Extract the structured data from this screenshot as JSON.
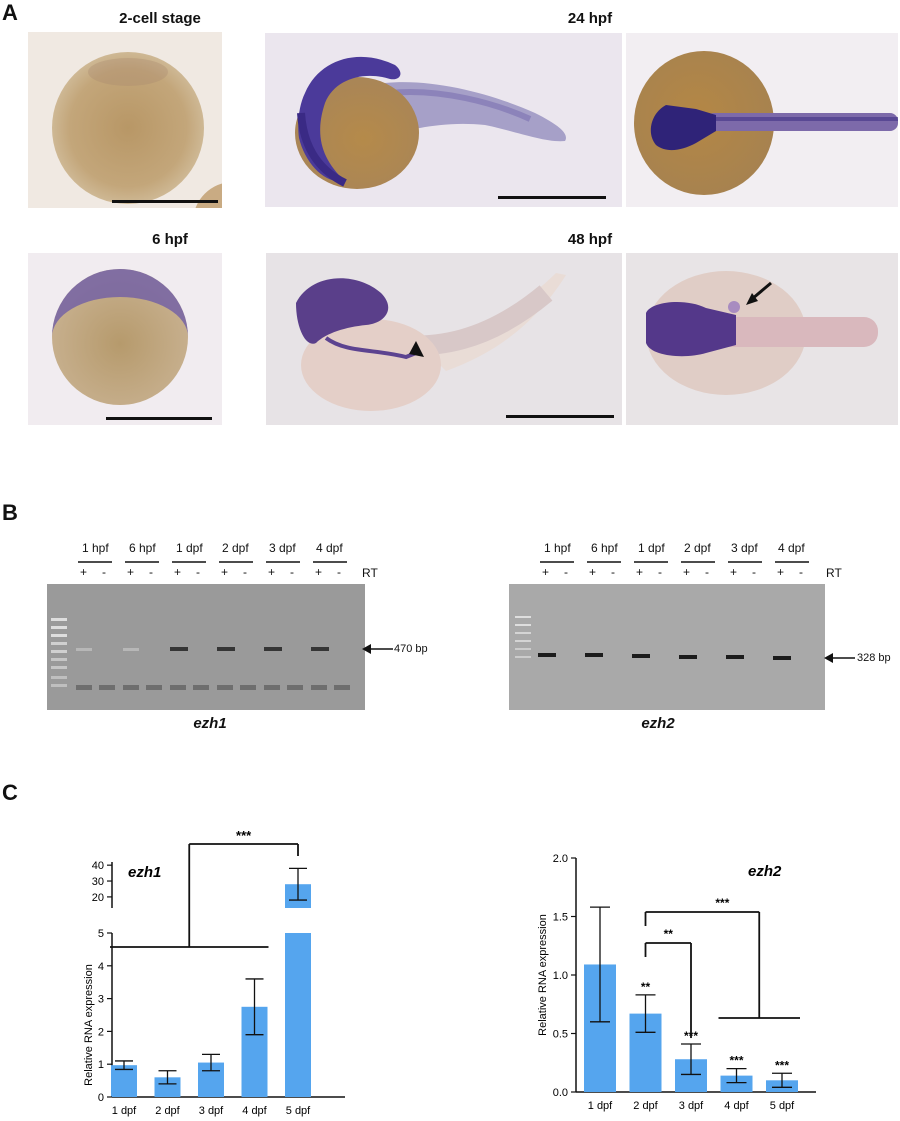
{
  "panelA": {
    "letter": "A",
    "titles": {
      "two_cell": "2-cell stage",
      "h24": "24 hpf",
      "h6": "6 hpf",
      "h48": "48 hpf"
    }
  },
  "panelB": {
    "letter": "B",
    "lanes": [
      "1 hpf",
      "6 hpf",
      "1 dpf",
      "2 dpf",
      "3 dpf",
      "4 dpf"
    ],
    "plus": "+",
    "minus": "-",
    "rt_label": "RT",
    "gel1": {
      "gene": "ezh1",
      "band": "470 bp"
    },
    "gel2": {
      "gene": "ezh2",
      "band": "328 bp"
    }
  },
  "panelC": {
    "letter": "C"
  },
  "chart_data": [
    {
      "type": "bar",
      "title": "ezh1",
      "xlabel": "",
      "ylabel": "Relative RNA expression",
      "categories": [
        "1 dpf",
        "2 dpf",
        "3 dpf",
        "4 dpf",
        "5 dpf"
      ],
      "values": [
        0.97,
        0.6,
        1.05,
        2.75,
        28
      ],
      "errors": [
        0.13,
        0.2,
        0.25,
        0.85,
        10
      ],
      "y_axis": "broken",
      "ylim_lower": [
        0,
        5
      ],
      "yticks_lower": [
        "0",
        "1",
        "2",
        "3",
        "4",
        "5"
      ],
      "ylim_upper": [
        13,
        42
      ],
      "yticks_upper": [
        "20",
        "30",
        "40"
      ],
      "significance": [
        {
          "from": "1 dpf - 4 dpf",
          "to": "5 dpf",
          "label": "***"
        }
      ],
      "bar_color": "#55a5ee"
    },
    {
      "type": "bar",
      "title": "ezh2",
      "xlabel": "",
      "ylabel": "Relative RNA expression",
      "categories": [
        "1 dpf",
        "2 dpf",
        "3 dpf",
        "4 dpf",
        "5 dpf"
      ],
      "values": [
        1.09,
        0.67,
        0.28,
        0.14,
        0.1
      ],
      "errors": [
        0.49,
        0.16,
        0.13,
        0.06,
        0.06
      ],
      "ylim": [
        0,
        2.0
      ],
      "yticks": [
        "0.0",
        "0.5",
        "1.0",
        "1.5",
        "2.0"
      ],
      "bar_stars": [
        "",
        "**",
        "***",
        "***",
        "***"
      ],
      "significance": [
        {
          "from": "2 dpf",
          "to": "3 dpf",
          "label": "**"
        },
        {
          "from": "2 dpf",
          "to": "4 dpf - 5 dpf",
          "label": "***"
        }
      ],
      "bar_color": "#55a5ee"
    }
  ]
}
